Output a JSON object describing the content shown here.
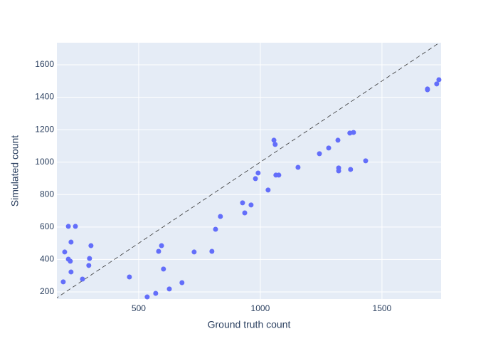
{
  "chart_data": {
    "type": "scatter",
    "x_label": "Ground truth count",
    "y_label": "Simulated count",
    "color": "#636efa",
    "x": [
      190,
      196,
      211,
      211,
      219,
      222,
      222,
      240,
      269,
      295,
      298,
      304,
      462,
      535,
      570,
      582,
      594,
      602,
      626,
      678,
      728,
      801,
      816,
      836,
      927,
      936,
      962,
      980,
      991,
      1032,
      1056,
      1061,
      1064,
      1076,
      1155,
      1243,
      1281,
      1319,
      1322,
      1322,
      1368,
      1371,
      1383,
      1433,
      1687,
      1687,
      1725,
      1734
    ],
    "values": [
      262,
      446,
      604,
      402,
      389,
      507,
      323,
      604,
      279,
      363,
      406,
      485,
      292,
      169,
      191,
      450,
      485,
      341,
      218,
      257,
      446,
      450,
      586,
      665,
      749,
      687,
      736,
      898,
      933,
      828,
      1135,
      1109,
      920,
      920,
      968,
      1052,
      1087,
      1135,
      964,
      946,
      1179,
      955,
      1183,
      1008,
      1451,
      1446,
      1482,
      1508
    ],
    "xlim": [
      164,
      1743
    ],
    "ylim": [
      156,
      1736
    ],
    "xticks": [
      500,
      1000,
      1500
    ],
    "yticks": [
      200,
      400,
      600,
      800,
      1000,
      1200,
      1400,
      1600
    ],
    "grid": true,
    "identity_line": true
  }
}
